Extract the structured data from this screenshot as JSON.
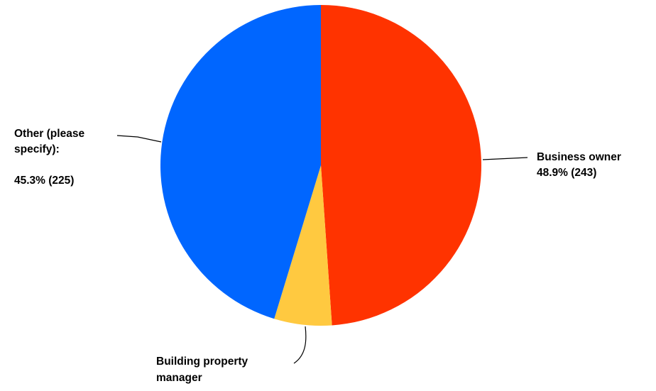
{
  "chart_data": {
    "type": "pie",
    "title": "",
    "start_angle_deg": 0,
    "direction": "clockwise",
    "slices": [
      {
        "label_lines": [
          "Business owner",
          "48.9% (243)"
        ],
        "percent": 48.9,
        "count": 243,
        "color": "#ff3300"
      },
      {
        "label_lines": [
          "Building property",
          "manager"
        ],
        "percent": 5.8,
        "count": 29,
        "color": "#ffc940"
      },
      {
        "label_lines": [
          "Other (please",
          "specify):",
          "",
          "45.3% (225)"
        ],
        "percent": 45.3,
        "count": 225,
        "color": "#0066ff"
      }
    ]
  }
}
